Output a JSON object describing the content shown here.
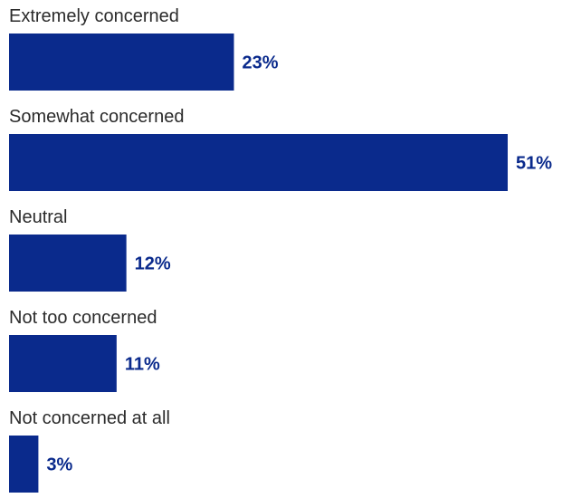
{
  "chart_data": {
    "type": "bar",
    "orientation": "horizontal",
    "categories": [
      "Extremely concerned",
      "Somewhat concerned",
      "Neutral",
      "Not too concerned",
      "Not concerned at all"
    ],
    "values": [
      23,
      51,
      12,
      11,
      3
    ],
    "value_labels": [
      "23%",
      "51%",
      "12%",
      "11%",
      "3%"
    ],
    "unit": "%",
    "xlim": [
      0,
      51
    ],
    "grid": false,
    "legend": "none",
    "bar_color": "#0a2a8c",
    "value_label_color": "#0a2a8c"
  }
}
